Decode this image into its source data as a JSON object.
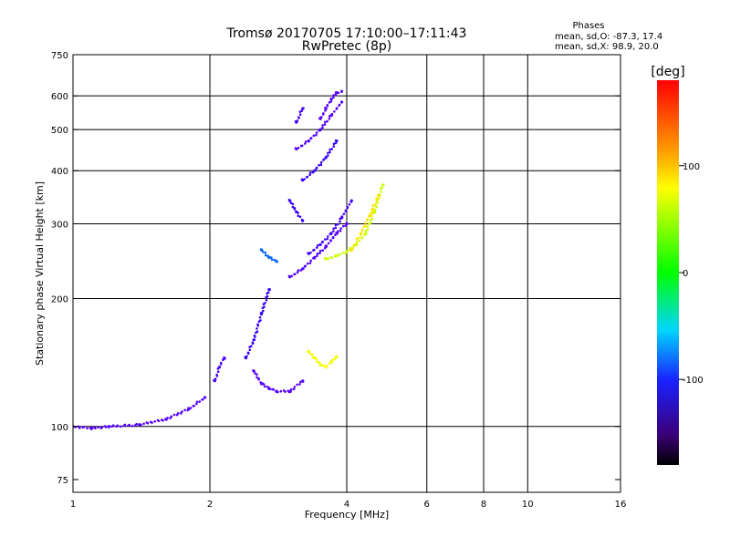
{
  "chart_data": {
    "type": "scatter",
    "title": "Tromsø 20170705 17:10:00–17:11:43",
    "subtitle": "RwPretec (8p)",
    "phases_header": "Phases",
    "phases_line1": "mean, sd,O: -87.3, 17.4",
    "phases_line2": "mean, sd,X:  98.9, 20.0",
    "xlabel": "Frequency [MHz]",
    "ylabel": "Stationary phase Virtual Height [km]",
    "xscale": "log2",
    "yscale": "log",
    "xlim": [
      1,
      16
    ],
    "ylim": [
      70,
      750
    ],
    "xticks": [
      1,
      2,
      4,
      6,
      8,
      10,
      16
    ],
    "xtick_labels": [
      "1",
      "2",
      "4",
      "6",
      "8",
      "10",
      "16"
    ],
    "yticks": [
      75,
      100,
      200,
      300,
      400,
      500,
      600,
      750
    ],
    "ytick_labels": [
      "75",
      "100",
      "200",
      "300",
      "400",
      "500",
      "600",
      "750"
    ],
    "grid": true,
    "colorbar": {
      "label": "[deg]",
      "range": [
        -180,
        180
      ],
      "ticks": [
        -100,
        0,
        100
      ],
      "tick_labels": [
        "-100",
        "0",
        "100"
      ],
      "colormap": "rainbow"
    },
    "series": [
      {
        "segments": [
          {
            "x": [
              1.0,
              1.1,
              1.2,
              1.4,
              1.6,
              1.8,
              1.95
            ],
            "y": [
              100,
              99,
              100,
              101,
              104,
              110,
              117
            ],
            "phase": -110
          },
          {
            "x": [
              2.05,
              2.1,
              2.15
            ],
            "y": [
              128,
              138,
              145
            ],
            "phase": -105
          },
          {
            "x": [
              2.4,
              2.5,
              2.6,
              2.7
            ],
            "y": [
              145,
              160,
              185,
              210
            ],
            "phase": -100
          },
          {
            "x": [
              2.5,
              2.6,
              2.7,
              2.8,
              3.0,
              3.2
            ],
            "y": [
              135,
              126,
              123,
              121,
              121,
              128
            ],
            "phase": -110
          },
          {
            "x": [
              2.6,
              2.7,
              2.8
            ],
            "y": [
              260,
              250,
              245
            ],
            "phase": -60
          },
          {
            "x": [
              3.0,
              3.2,
              3.4,
              3.6,
              3.8,
              4.0
            ],
            "y": [
              225,
              235,
              250,
              265,
              285,
              300
            ],
            "phase": -110
          },
          {
            "x": [
              3.3,
              3.5,
              3.7,
              3.9,
              4.1
            ],
            "y": [
              255,
              268,
              285,
              310,
              340
            ],
            "phase": -105
          },
          {
            "x": [
              3.0,
              3.1,
              3.2
            ],
            "y": [
              340,
              320,
              305
            ],
            "phase": -100
          },
          {
            "x": [
              3.1,
              3.3,
              3.5,
              3.7,
              3.9
            ],
            "y": [
              450,
              470,
              500,
              540,
              580
            ],
            "phase": -110
          },
          {
            "x": [
              3.2,
              3.4,
              3.6,
              3.8
            ],
            "y": [
              380,
              400,
              430,
              470
            ],
            "phase": -100
          },
          {
            "x": [
              3.1,
              3.2
            ],
            "y": [
              520,
              560
            ],
            "phase": -105
          },
          {
            "x": [
              3.5,
              3.6,
              3.7,
              3.8,
              3.9
            ],
            "y": [
              530,
              560,
              590,
              610,
              615
            ],
            "phase": -110
          }
        ],
        "name": ""
      },
      {
        "segments": [
          {
            "x": [
              3.6,
              3.8,
              4.0,
              4.2,
              4.4,
              4.6,
              4.8
            ],
            "y": [
              248,
              252,
              258,
              268,
              285,
              320,
              370
            ],
            "phase": 100
          },
          {
            "x": [
              4.1,
              4.3,
              4.5,
              4.7
            ],
            "y": [
              260,
              285,
              315,
              350
            ],
            "phase": 120
          },
          {
            "x": [
              3.3,
              3.4,
              3.5,
              3.6,
              3.7,
              3.8
            ],
            "y": [
              150,
              145,
              140,
              138,
              142,
              146
            ],
            "phase": 110
          }
        ],
        "name": ""
      }
    ]
  }
}
